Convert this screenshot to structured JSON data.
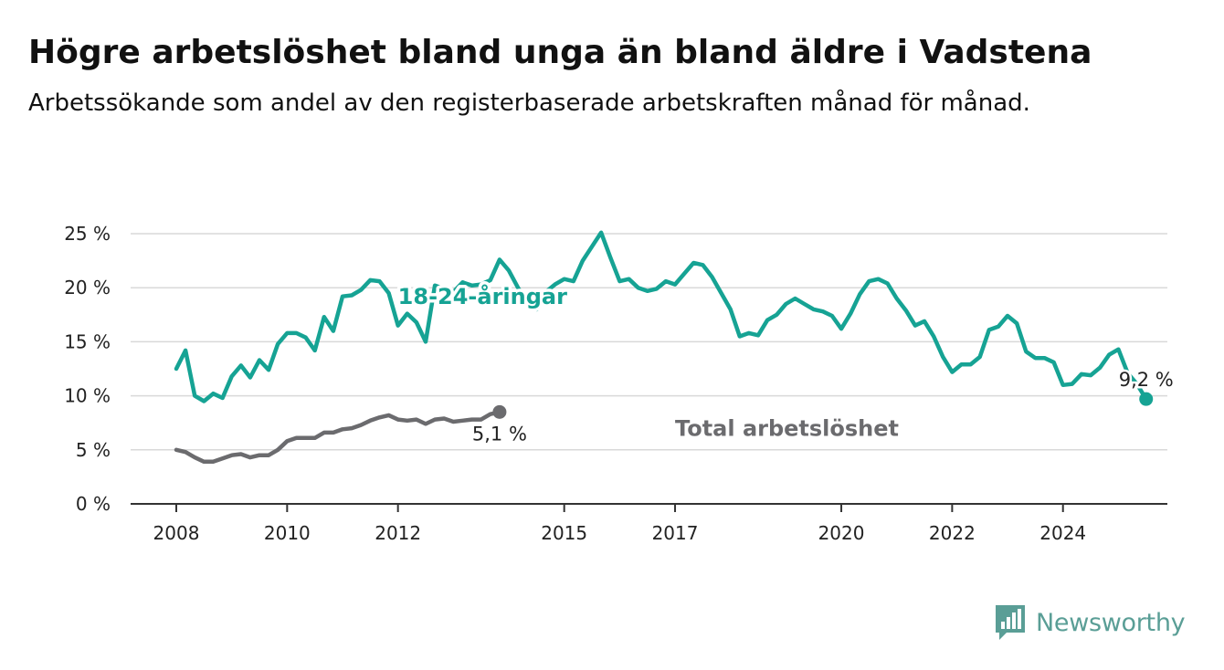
{
  "title": "Högre arbetslöshet bland unga än bland äldre i Vadstena",
  "subtitle": "Arbetssökande som andel av den registerbaserade arbetskraften månad för månad.",
  "brand": {
    "name": "Newsworthy",
    "icon": "newsworthy-logo-icon",
    "color": "#5a9e96"
  },
  "chart_data": {
    "type": "line",
    "title": "Högre arbetslöshet bland unga än bland äldre i Vadstena",
    "subtitle": "Arbetssökande som andel av den registerbaserade arbetskraften månad för månad.",
    "xlabel": "",
    "ylabel": "",
    "x_range": [
      "2008-01",
      "2025-12"
    ],
    "x_ticks": [
      {
        "date": "2008-01",
        "label": "2008"
      },
      {
        "date": "2010-01",
        "label": "2010"
      },
      {
        "date": "2012-01",
        "label": "2012"
      },
      {
        "date": "2015-01",
        "label": "2015"
      },
      {
        "date": "2017-01",
        "label": "2017"
      },
      {
        "date": "2020-01",
        "label": "2020"
      },
      {
        "date": "2022-01",
        "label": "2022"
      },
      {
        "date": "2024-01",
        "label": "2024"
      }
    ],
    "ylim": [
      0,
      25
    ],
    "y_ticks": [
      {
        "value": 0,
        "label": "0 %"
      },
      {
        "value": 5,
        "label": "5 %"
      },
      {
        "value": 10,
        "label": "10 %"
      },
      {
        "value": 15,
        "label": "15 %"
      },
      {
        "value": 20,
        "label": "20 %"
      },
      {
        "value": 25,
        "label": "25 %"
      }
    ],
    "grid": true,
    "legend": "inline labels",
    "series": [
      {
        "name": "18-24-åringar",
        "color": "#16a394",
        "label_at": {
          "x": "2012-01",
          "y": 18.5
        },
        "end_label": "9,2 %",
        "points": [
          [
            "2008-01",
            12.5
          ],
          [
            "2008-03",
            14.2
          ],
          [
            "2008-05",
            10.0
          ],
          [
            "2008-07",
            9.5
          ],
          [
            "2008-09",
            10.2
          ],
          [
            "2008-11",
            9.8
          ],
          [
            "2009-01",
            11.8
          ],
          [
            "2009-03",
            12.8
          ],
          [
            "2009-05",
            11.7
          ],
          [
            "2009-07",
            13.3
          ],
          [
            "2009-09",
            12.4
          ],
          [
            "2009-11",
            14.8
          ],
          [
            "2010-01",
            15.8
          ],
          [
            "2010-03",
            15.8
          ],
          [
            "2010-05",
            15.4
          ],
          [
            "2010-07",
            14.2
          ],
          [
            "2010-09",
            17.3
          ],
          [
            "2010-11",
            16.0
          ],
          [
            "2011-01",
            19.2
          ],
          [
            "2011-03",
            19.3
          ],
          [
            "2011-05",
            19.8
          ],
          [
            "2011-07",
            20.7
          ],
          [
            "2011-09",
            20.6
          ],
          [
            "2011-11",
            19.5
          ],
          [
            "2012-01",
            16.5
          ],
          [
            "2012-03",
            17.6
          ],
          [
            "2012-05",
            16.8
          ],
          [
            "2012-07",
            15.0
          ],
          [
            "2012-09",
            20.2
          ],
          [
            "2012-11",
            19.9
          ],
          [
            "2013-01",
            19.6
          ],
          [
            "2013-03",
            20.5
          ],
          [
            "2013-05",
            20.2
          ],
          [
            "2013-07",
            20.3
          ],
          [
            "2013-09",
            20.7
          ],
          [
            "2013-11",
            22.6
          ],
          [
            "2014-01",
            21.6
          ],
          [
            "2014-03",
            20.0
          ],
          [
            "2014-05",
            18.7
          ],
          [
            "2014-07",
            18.0
          ],
          [
            "2014-09",
            19.6
          ],
          [
            "2014-11",
            20.3
          ],
          [
            "2015-01",
            20.8
          ],
          [
            "2015-03",
            20.6
          ],
          [
            "2015-05",
            22.5
          ],
          [
            "2015-07",
            23.8
          ],
          [
            "2015-09",
            25.1
          ],
          [
            "2015-11",
            22.8
          ],
          [
            "2016-01",
            20.6
          ],
          [
            "2016-03",
            20.8
          ],
          [
            "2016-05",
            20.0
          ],
          [
            "2016-07",
            19.7
          ],
          [
            "2016-09",
            19.9
          ],
          [
            "2016-11",
            20.6
          ],
          [
            "2017-01",
            20.3
          ],
          [
            "2017-03",
            21.3
          ],
          [
            "2017-05",
            22.3
          ],
          [
            "2017-07",
            22.1
          ],
          [
            "2017-09",
            21.0
          ],
          [
            "2017-11",
            19.5
          ],
          [
            "2018-01",
            18.0
          ],
          [
            "2018-03",
            15.5
          ],
          [
            "2018-05",
            15.8
          ],
          [
            "2018-07",
            15.6
          ],
          [
            "2018-09",
            17.0
          ],
          [
            "2018-11",
            17.5
          ],
          [
            "2019-01",
            18.5
          ],
          [
            "2019-03",
            19.0
          ],
          [
            "2019-05",
            18.5
          ],
          [
            "2019-07",
            18.0
          ],
          [
            "2019-09",
            17.8
          ],
          [
            "2019-11",
            17.4
          ],
          [
            "2020-01",
            16.2
          ],
          [
            "2020-03",
            17.6
          ],
          [
            "2020-05",
            19.4
          ],
          [
            "2020-07",
            20.6
          ],
          [
            "2020-09",
            20.8
          ],
          [
            "2020-11",
            20.4
          ],
          [
            "2021-01",
            19.0
          ],
          [
            "2021-03",
            17.9
          ],
          [
            "2021-05",
            16.5
          ],
          [
            "2021-07",
            16.9
          ],
          [
            "2021-09",
            15.5
          ],
          [
            "2021-11",
            13.6
          ],
          [
            "2022-01",
            12.2
          ],
          [
            "2022-03",
            12.9
          ],
          [
            "2022-05",
            12.9
          ],
          [
            "2022-07",
            13.6
          ],
          [
            "2022-09",
            16.1
          ],
          [
            "2022-11",
            16.4
          ],
          [
            "2023-01",
            17.4
          ],
          [
            "2023-03",
            16.7
          ],
          [
            "2023-05",
            14.1
          ],
          [
            "2023-07",
            13.5
          ],
          [
            "2023-09",
            13.5
          ],
          [
            "2023-11",
            13.1
          ],
          [
            "2024-01",
            11.0
          ],
          [
            "2024-03",
            11.1
          ],
          [
            "2024-05",
            12.0
          ],
          [
            "2024-07",
            11.9
          ],
          [
            "2024-09",
            12.6
          ],
          [
            "2024-11",
            13.8
          ],
          [
            "2025-01",
            14.3
          ],
          [
            "2025-03",
            12.1
          ],
          [
            "2025-05",
            11.1
          ],
          [
            "2025-07",
            9.7
          ]
        ]
      },
      {
        "name": "Total arbetslöshet",
        "color": "#6b6b6e",
        "label_at": {
          "x": "2017-01",
          "y": 6.3
        },
        "end_label": "5,1 %",
        "points": [
          [
            "2008-01",
            5.0
          ],
          [
            "2008-03",
            4.8
          ],
          [
            "2008-05",
            4.3
          ],
          [
            "2008-07",
            3.9
          ],
          [
            "2008-09",
            3.9
          ],
          [
            "2008-11",
            4.2
          ],
          [
            "2009-01",
            4.5
          ],
          [
            "2009-03",
            4.6
          ],
          [
            "2009-05",
            4.3
          ],
          [
            "2009-07",
            4.5
          ],
          [
            "2009-09",
            4.5
          ],
          [
            "2009-11",
            5.0
          ],
          [
            "2010-01",
            5.8
          ],
          [
            "2010-03",
            6.1
          ],
          [
            "2010-05",
            6.1
          ],
          [
            "2010-07",
            6.1
          ],
          [
            "2010-09",
            6.6
          ],
          [
            "2010-11",
            6.6
          ],
          [
            "2011-01",
            6.9
          ],
          [
            "2011-03",
            7.0
          ],
          [
            "2011-05",
            7.3
          ],
          [
            "2011-07",
            7.7
          ],
          [
            "2011-09",
            8.0
          ],
          [
            "2011-11",
            8.2
          ],
          [
            "2012-01",
            7.8
          ],
          [
            "2012-03",
            7.7
          ],
          [
            "2012-05",
            7.8
          ],
          [
            "2012-07",
            7.4
          ],
          [
            "2012-09",
            7.8
          ],
          [
            "2012-11",
            7.9
          ],
          [
            "2013-01",
            7.6
          ],
          [
            "2013-03",
            7.7
          ],
          [
            "2013-05",
            7.8
          ],
          [
            "2013-07",
            7.8
          ],
          [
            "2013-09",
            8.3
          ],
          [
            "2013-11",
            8.5
          ]
        ]
      }
    ]
  }
}
